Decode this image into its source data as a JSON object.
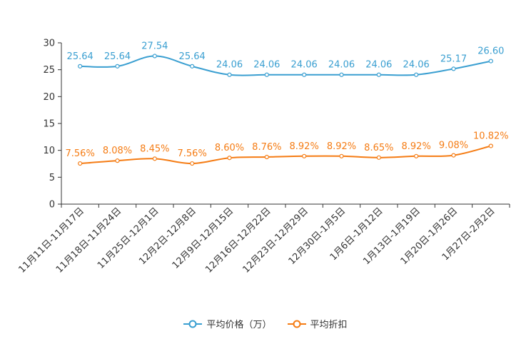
{
  "chart_data": {
    "type": "line",
    "title": "",
    "xlabel": "",
    "ylabel": "",
    "ylim": [
      0,
      30
    ],
    "yticks": [
      0,
      5,
      10,
      15,
      20,
      25,
      30
    ],
    "categories": [
      "11月11日-11月17日",
      "11月18日-11月24日",
      "11月25日-12月1日",
      "12月2日-12月8日",
      "12月9日-12月15日",
      "12月16日-12月22日",
      "12月23日-12月29日",
      "12月30日-1月5日",
      "1月6日-1月12日",
      "1月13日-1月19日",
      "1月20日-1月26日",
      "1月27日-2月2日"
    ],
    "series": [
      {
        "name": "平均价格（万）",
        "color": "#3a9fd1",
        "values": [
          25.64,
          25.64,
          27.54,
          25.64,
          24.06,
          24.06,
          24.06,
          24.06,
          24.06,
          24.06,
          25.17,
          26.6
        ],
        "labels": [
          "25.64",
          "25.64",
          "27.54",
          "25.64",
          "24.06",
          "24.06",
          "24.06",
          "24.06",
          "24.06",
          "24.06",
          "25.17",
          "26.60"
        ]
      },
      {
        "name": "平均折扣",
        "color": "#f57c14",
        "values": [
          7.56,
          8.08,
          8.45,
          7.56,
          8.6,
          8.76,
          8.92,
          8.92,
          8.65,
          8.92,
          9.08,
          10.82
        ],
        "labels": [
          "7.56%",
          "8.08%",
          "8.45%",
          "7.56%",
          "8.60%",
          "8.76%",
          "8.92%",
          "8.92%",
          "8.65%",
          "8.92%",
          "9.08%",
          "10.82%"
        ]
      }
    ],
    "legend_position": "bottom"
  }
}
